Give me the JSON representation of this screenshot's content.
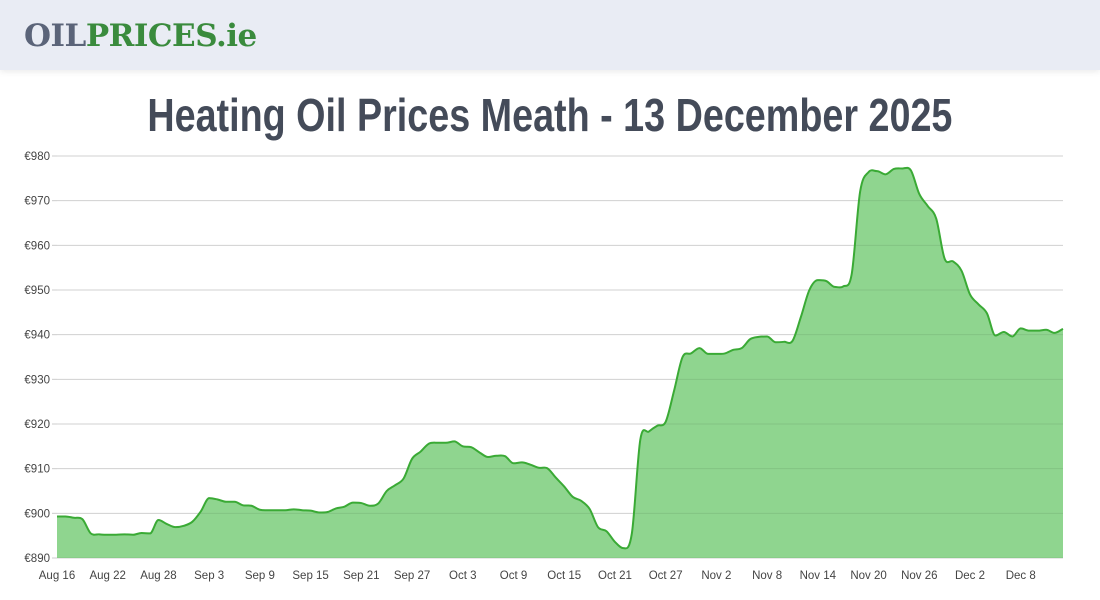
{
  "header": {
    "logo_part1": "OIL",
    "logo_part2": "PRICES.ie"
  },
  "page_title": "Heating Oil Prices Meath - 13 December 2025",
  "colors": {
    "line": "#3aaa35",
    "fill": "#8fd58f",
    "grid": "#e3e3e3",
    "logo_gray": "#5b6479",
    "logo_green": "#3a8b3d"
  },
  "chart_data": {
    "type": "area",
    "title": "",
    "xlabel": "",
    "ylabel": "",
    "ylim": [
      890,
      980
    ],
    "y_ticks": [
      "€890",
      "€900",
      "€910",
      "€920",
      "€930",
      "€940",
      "€950",
      "€960",
      "€970",
      "€980"
    ],
    "y_tick_values": [
      890,
      900,
      910,
      920,
      930,
      940,
      950,
      960,
      970,
      980
    ],
    "grid": true,
    "x_ticks": [
      "Aug 16",
      "Aug 22",
      "Aug 28",
      "Sep 3",
      "Sep 9",
      "Sep 15",
      "Sep 21",
      "Sep 27",
      "Oct 3",
      "Oct 9",
      "Oct 15",
      "Oct 21",
      "Oct 27",
      "Nov 2",
      "Nov 8",
      "Nov 14",
      "Nov 20",
      "Nov 26",
      "Dec 2",
      "Dec 8"
    ],
    "x": [
      "Aug 16",
      "Aug 17",
      "Aug 18",
      "Aug 19",
      "Aug 20",
      "Aug 21",
      "Aug 22",
      "Aug 23",
      "Aug 24",
      "Aug 25",
      "Aug 26",
      "Aug 27",
      "Aug 28",
      "Aug 29",
      "Aug 30",
      "Aug 31",
      "Sep 1",
      "Sep 2",
      "Sep 3",
      "Sep 4",
      "Sep 5",
      "Sep 6",
      "Sep 7",
      "Sep 8",
      "Sep 9",
      "Sep 10",
      "Sep 11",
      "Sep 12",
      "Sep 13",
      "Sep 14",
      "Sep 15",
      "Sep 16",
      "Sep 17",
      "Sep 18",
      "Sep 19",
      "Sep 20",
      "Sep 21",
      "Sep 22",
      "Sep 23",
      "Sep 24",
      "Sep 25",
      "Sep 26",
      "Sep 27",
      "Sep 28",
      "Sep 29",
      "Sep 30",
      "Oct 1",
      "Oct 2",
      "Oct 3",
      "Oct 4",
      "Oct 5",
      "Oct 6",
      "Oct 7",
      "Oct 8",
      "Oct 9",
      "Oct 10",
      "Oct 11",
      "Oct 12",
      "Oct 13",
      "Oct 14",
      "Oct 15",
      "Oct 16",
      "Oct 17",
      "Oct 18",
      "Oct 19",
      "Oct 20",
      "Oct 21",
      "Oct 22",
      "Oct 23",
      "Oct 24",
      "Oct 25",
      "Oct 26",
      "Oct 27",
      "Oct 28",
      "Oct 29",
      "Oct 30",
      "Oct 31",
      "Nov 1",
      "Nov 2",
      "Nov 3",
      "Nov 4",
      "Nov 5",
      "Nov 6",
      "Nov 7",
      "Nov 8",
      "Nov 9",
      "Nov 10",
      "Nov 11",
      "Nov 12",
      "Nov 13",
      "Nov 14",
      "Nov 15",
      "Nov 16",
      "Nov 17",
      "Nov 18",
      "Nov 19",
      "Nov 20",
      "Nov 21",
      "Nov 22",
      "Nov 23",
      "Nov 24",
      "Nov 25",
      "Nov 26",
      "Nov 27",
      "Nov 28",
      "Nov 29",
      "Nov 30",
      "Dec 1",
      "Dec 2",
      "Dec 3",
      "Dec 4",
      "Dec 5",
      "Dec 6",
      "Dec 7",
      "Dec 8",
      "Dec 9",
      "Dec 10",
      "Dec 11",
      "Dec 12",
      "Dec 13"
    ],
    "values": [
      899.3,
      899.3,
      899.0,
      898.7,
      895.5,
      895.3,
      895.2,
      895.2,
      895.3,
      895.2,
      895.6,
      895.5,
      898.5,
      897.6,
      896.9,
      897.2,
      898.1,
      900.4,
      903.4,
      903.1,
      902.6,
      902.6,
      901.8,
      901.7,
      900.8,
      900.7,
      900.7,
      900.7,
      900.9,
      900.7,
      900.6,
      900.2,
      900.3,
      901.1,
      901.5,
      902.4,
      902.3,
      901.7,
      902.2,
      905.0,
      906.3,
      907.8,
      912.2,
      913.8,
      915.6,
      915.8,
      915.8,
      916.1,
      915.0,
      914.8,
      913.6,
      912.6,
      912.9,
      912.8,
      911.2,
      911.4,
      910.9,
      910.2,
      910.1,
      908.0,
      906.0,
      903.7,
      902.8,
      901.0,
      896.9,
      896.0,
      893.6,
      892.2,
      895.5,
      916.5,
      918.3,
      919.6,
      920.5,
      927.5,
      935.0,
      935.8,
      937.0,
      935.7,
      935.7,
      935.8,
      936.6,
      937.0,
      939.0,
      939.5,
      939.6,
      938.3,
      938.4,
      938.6,
      944.0,
      950.0,
      952.2,
      952.0,
      950.7,
      950.8,
      953.5,
      972.0,
      976.4,
      976.6,
      975.9,
      977.1,
      977.2,
      976.8,
      971.5,
      968.8,
      966.0,
      957.0,
      956.4,
      954.3,
      949.0,
      946.8,
      944.8,
      939.8,
      940.6,
      939.6,
      941.4,
      940.9,
      940.9,
      941.1,
      940.4,
      941.3
    ]
  }
}
